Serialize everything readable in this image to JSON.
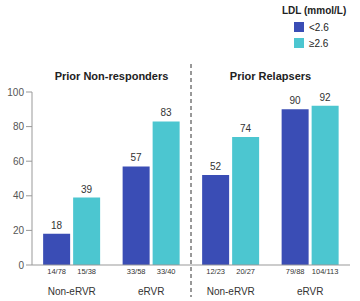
{
  "chart_data": {
    "type": "bar",
    "categories": [
      "Non-eRVR",
      "eRVR",
      "Non-eRVR",
      "eRVR"
    ],
    "groups": [
      "Prior Non-responders",
      "Prior Relapsers"
    ],
    "series": [
      {
        "name": "<2.6",
        "color": "#3a4db5",
        "values": [
          18,
          57,
          52,
          90
        ],
        "fractions": [
          "14/78",
          "33/58",
          "12/23",
          "79/88"
        ]
      },
      {
        "name": "≥2.6",
        "color": "#4cc6d0",
        "values": [
          39,
          83,
          74,
          92
        ],
        "fractions": [
          "15/38",
          "33/40",
          "20/27",
          "104/113"
        ]
      }
    ],
    "ylim": [
      0,
      100
    ],
    "yticks": [
      0,
      20,
      40,
      60,
      80,
      100
    ],
    "grid": false,
    "legend": "upper right",
    "legend_title": "LDL (mmol/L)",
    "data_labels": true
  }
}
